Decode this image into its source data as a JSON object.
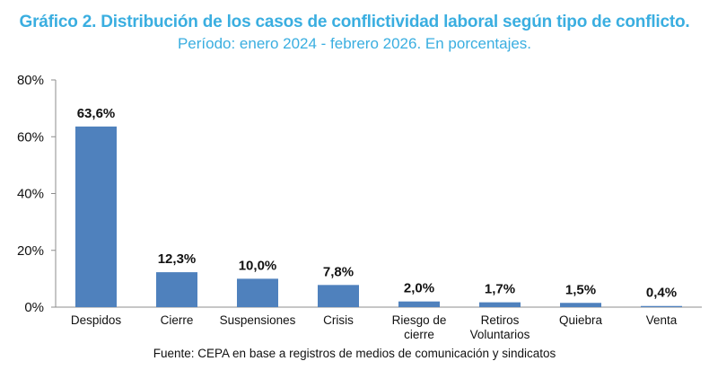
{
  "chart_data": {
    "type": "bar",
    "title": "Gráfico 2.  Distribución de los casos de conflictividad laboral según tipo de conflicto.",
    "subtitle": "Período: enero 2024 - febrero 2026. En porcentajes.",
    "categories": [
      [
        "Despidos"
      ],
      [
        "Cierre"
      ],
      [
        "Suspensiones"
      ],
      [
        "Crisis"
      ],
      [
        "Riesgo de",
        "cierre"
      ],
      [
        "Retiros",
        "Voluntarios"
      ],
      [
        "Quiebra"
      ],
      [
        "Venta"
      ]
    ],
    "values": [
      63.6,
      12.3,
      10.0,
      7.8,
      2.0,
      1.7,
      1.5,
      0.4
    ],
    "data_labels": [
      "63,6%",
      "12,3%",
      "10,0%",
      "7,8%",
      "2,0%",
      "1,7%",
      "1,5%",
      "0,4%"
    ],
    "ylim": [
      0,
      80
    ],
    "yticks": [
      0,
      20,
      40,
      60,
      80
    ],
    "ytick_labels": [
      "0%",
      "20%",
      "40%",
      "60%",
      "80%"
    ],
    "grid": false,
    "bar_color": "#4f81bd",
    "title_color": "#3aaee0",
    "source": "Fuente: CEPA en base a registros de medios de comunicación y sindicatos"
  }
}
